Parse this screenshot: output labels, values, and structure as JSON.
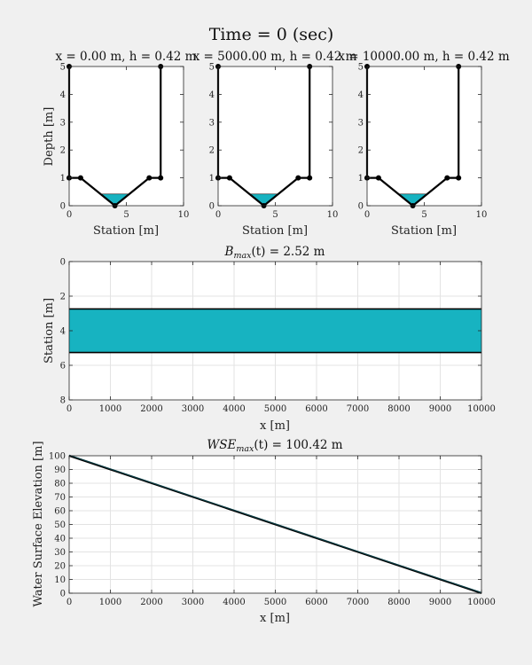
{
  "figure": {
    "title": "Time = 0 (sec)"
  },
  "chart_data": [
    {
      "type": "area",
      "title": "x = 0.00 m, h = 0.42 m",
      "xlabel": "Station [m]",
      "ylabel": "Depth [m]",
      "xlim": [
        0,
        10
      ],
      "ylim": [
        0,
        5
      ],
      "xticks": [
        "0",
        "5",
        "10"
      ],
      "yticks": [
        "0",
        "1",
        "2",
        "3",
        "4",
        "5"
      ],
      "cross_section": [
        [
          0,
          5
        ],
        [
          0,
          1
        ],
        [
          1,
          1
        ],
        [
          4,
          0
        ],
        [
          7,
          1
        ],
        [
          8,
          1
        ],
        [
          8,
          5
        ]
      ],
      "water_depth": 0.42,
      "fill_color": "#17b3c1"
    },
    {
      "type": "area",
      "title": "x = 5000.00 m, h = 0.42 m",
      "xlabel": "Station [m]",
      "ylabel": "",
      "xlim": [
        0,
        10
      ],
      "ylim": [
        0,
        5
      ],
      "xticks": [
        "0",
        "5",
        "10"
      ],
      "yticks": [
        "0",
        "1",
        "2",
        "3",
        "4",
        "5"
      ],
      "cross_section": [
        [
          0,
          5
        ],
        [
          0,
          1
        ],
        [
          1,
          1
        ],
        [
          4,
          0
        ],
        [
          7,
          1
        ],
        [
          8,
          1
        ],
        [
          8,
          5
        ]
      ],
      "water_depth": 0.42,
      "fill_color": "#17b3c1"
    },
    {
      "type": "area",
      "title": "x = 10000.00 m, h = 0.42 m",
      "xlabel": "Station [m]",
      "ylabel": "",
      "xlim": [
        0,
        10
      ],
      "ylim": [
        0,
        5
      ],
      "xticks": [
        "0",
        "5",
        "10"
      ],
      "yticks": [
        "0",
        "1",
        "2",
        "3",
        "4",
        "5"
      ],
      "cross_section": [
        [
          0,
          5
        ],
        [
          0,
          1
        ],
        [
          1,
          1
        ],
        [
          4,
          0
        ],
        [
          7,
          1
        ],
        [
          8,
          1
        ],
        [
          8,
          5
        ]
      ],
      "water_depth": 0.42,
      "fill_color": "#17b3c1"
    },
    {
      "type": "area",
      "title": "B_max(t) = 2.52 m",
      "title_parts": {
        "symbol": "B",
        "sub": "max",
        "arg": "(t) = 2.52 m"
      },
      "xlabel": "x [m]",
      "ylabel": "Station [m]",
      "xlim": [
        0,
        10000
      ],
      "ylim": [
        0,
        8
      ],
      "y_reversed": true,
      "xticks": [
        "0",
        "1000",
        "2000",
        "3000",
        "4000",
        "5000",
        "6000",
        "7000",
        "8000",
        "9000",
        "10000"
      ],
      "yticks": [
        "0",
        "2",
        "4",
        "6",
        "8"
      ],
      "band": {
        "x": [
          0,
          10000
        ],
        "y_from": 2.74,
        "y_to": 5.26
      },
      "fill_color": "#17b3c1",
      "grid": true
    },
    {
      "type": "line",
      "title": "WSE_max(t) = 100.42 m",
      "title_parts": {
        "symbol": "WSE",
        "sub": "max",
        "arg": "(t) = 100.42 m"
      },
      "xlabel": "x [m]",
      "ylabel": "Water Surface Elevation [m]",
      "xlim": [
        0,
        10000
      ],
      "ylim": [
        0,
        100
      ],
      "xticks": [
        "0",
        "1000",
        "2000",
        "3000",
        "4000",
        "5000",
        "6000",
        "7000",
        "8000",
        "9000",
        "10000"
      ],
      "yticks": [
        "0",
        "10",
        "20",
        "30",
        "40",
        "50",
        "60",
        "70",
        "80",
        "90",
        "100"
      ],
      "series": [
        {
          "x": [
            0,
            10000
          ],
          "y": [
            100,
            0
          ]
        },
        {
          "x": [
            0,
            10000
          ],
          "y": [
            100.42,
            0.42
          ]
        }
      ],
      "fill_color": "#17b3c1",
      "grid": true
    }
  ]
}
